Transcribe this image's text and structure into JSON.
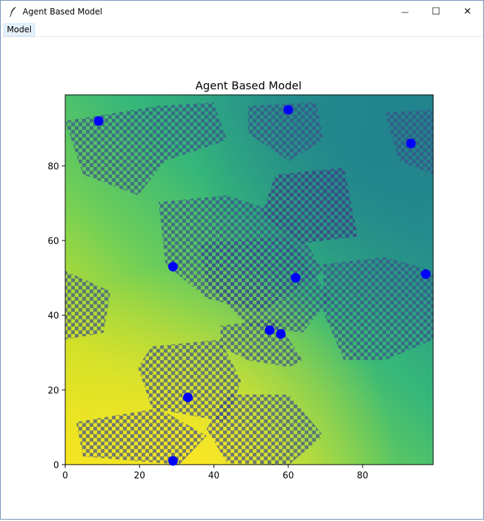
{
  "window": {
    "title": "Agent Based Model",
    "minimize_glyph": "—",
    "maximize_glyph": "☐",
    "close_glyph": "✕"
  },
  "menu": {
    "items": [
      {
        "label": "Model"
      }
    ]
  },
  "chart_data": {
    "type": "heatmap",
    "title": "Agent Based Model",
    "xlabel": "",
    "ylabel": "",
    "xlim": [
      0,
      99
    ],
    "ylim": [
      0,
      99
    ],
    "xticks": [
      0,
      20,
      40,
      60,
      80
    ],
    "yticks": [
      0,
      20,
      40,
      60,
      80
    ],
    "grid": false,
    "colormap": "viridis",
    "agent_color": "#0000ff",
    "agents": [
      {
        "x": 9,
        "y": 92
      },
      {
        "x": 60,
        "y": 95
      },
      {
        "x": 93,
        "y": 86
      },
      {
        "x": 29,
        "y": 53
      },
      {
        "x": 62,
        "y": 50
      },
      {
        "x": 97,
        "y": 51
      },
      {
        "x": 55,
        "y": 36
      },
      {
        "x": 58,
        "y": 35
      },
      {
        "x": 33,
        "y": 18
      },
      {
        "x": 29,
        "y": 1
      }
    ]
  }
}
